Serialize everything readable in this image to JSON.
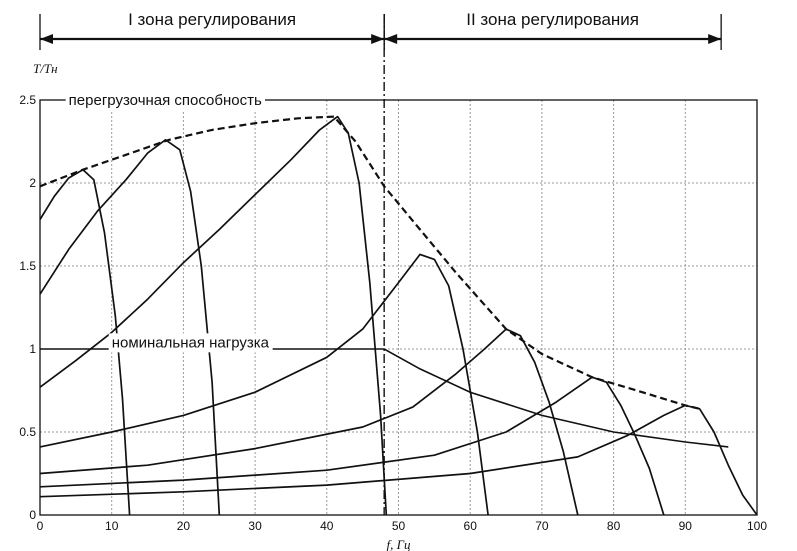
{
  "chart_data": {
    "type": "line",
    "ylabel": "T/Tн",
    "xlabel": "f, Гц",
    "xlim": [
      0,
      100
    ],
    "ylim": [
      0,
      2.5
    ],
    "xticks": [
      0,
      10,
      20,
      30,
      40,
      50,
      60,
      70,
      80,
      90,
      100
    ],
    "xtick_labels": [
      "0",
      "10",
      "20",
      "30",
      "40",
      "50",
      "60",
      "70",
      "80",
      "90",
      "100"
    ],
    "yticks": [
      0,
      0.5,
      1,
      1.5,
      2,
      2.5
    ],
    "ytick_labels": [
      "0",
      "0.5",
      "1",
      "1.5",
      "2",
      "2.5"
    ],
    "grid": true,
    "zone_boundary_x": 48,
    "zones": [
      {
        "label": "I зона регулирования",
        "from": 0,
        "to": 48
      },
      {
        "label": "II зона регулирования",
        "from": 48,
        "to": 95
      }
    ],
    "annotations": [
      {
        "text": "перегрузочная способность",
        "x": 4,
        "y": 2.5
      },
      {
        "text": "номинальная нагрузка",
        "x": 10,
        "y": 1.04
      }
    ],
    "overload_envelope": {
      "style": "dashed",
      "points": [
        [
          0,
          1.98
        ],
        [
          6,
          2.08
        ],
        [
          12,
          2.17
        ],
        [
          18,
          2.26
        ],
        [
          24,
          2.32
        ],
        [
          30,
          2.36
        ],
        [
          36,
          2.39
        ],
        [
          41,
          2.4
        ],
        [
          44,
          2.25
        ],
        [
          48,
          1.98
        ],
        [
          53,
          1.72
        ],
        [
          58,
          1.46
        ],
        [
          65,
          1.12
        ],
        [
          70,
          0.97
        ],
        [
          77,
          0.83
        ],
        [
          84,
          0.74
        ],
        [
          90,
          0.66
        ],
        [
          92,
          0.64
        ]
      ]
    },
    "nominal_load": {
      "points": [
        [
          0,
          1
        ],
        [
          48,
          1
        ],
        [
          53,
          0.88
        ],
        [
          60,
          0.74
        ],
        [
          70,
          0.6
        ],
        [
          80,
          0.5
        ],
        [
          90,
          0.44
        ],
        [
          96,
          0.41
        ]
      ]
    },
    "series": [
      {
        "values": [
          [
            0,
            1.78
          ],
          [
            2,
            1.92
          ],
          [
            4,
            2.03
          ],
          [
            6,
            2.08
          ],
          [
            7.5,
            2.02
          ],
          [
            9,
            1.7
          ],
          [
            10.5,
            1.2
          ],
          [
            11.5,
            0.7
          ],
          [
            12.5,
            0
          ]
        ]
      },
      {
        "values": [
          [
            0,
            1.33
          ],
          [
            4,
            1.6
          ],
          [
            8,
            1.83
          ],
          [
            12,
            2.02
          ],
          [
            15,
            2.18
          ],
          [
            17.5,
            2.26
          ],
          [
            19.5,
            2.2
          ],
          [
            21,
            1.95
          ],
          [
            22.5,
            1.5
          ],
          [
            24,
            0.8
          ],
          [
            25,
            0
          ]
        ]
      },
      {
        "values": [
          [
            0,
            0.77
          ],
          [
            5,
            0.93
          ],
          [
            10,
            1.1
          ],
          [
            15,
            1.3
          ],
          [
            20,
            1.52
          ],
          [
            25,
            1.72
          ],
          [
            30,
            1.93
          ],
          [
            35,
            2.14
          ],
          [
            39,
            2.32
          ],
          [
            41.5,
            2.4
          ],
          [
            43,
            2.3
          ],
          [
            44.5,
            2.0
          ],
          [
            46,
            1.4
          ],
          [
            47.5,
            0.6
          ],
          [
            48.3,
            0
          ]
        ]
      },
      {
        "values": [
          [
            0,
            0.41
          ],
          [
            10,
            0.5
          ],
          [
            20,
            0.6
          ],
          [
            30,
            0.74
          ],
          [
            40,
            0.95
          ],
          [
            45,
            1.12
          ],
          [
            50,
            1.4
          ],
          [
            53,
            1.57
          ],
          [
            55,
            1.54
          ],
          [
            57,
            1.38
          ],
          [
            59,
            1.0
          ],
          [
            61,
            0.5
          ],
          [
            62.5,
            0
          ]
        ]
      },
      {
        "values": [
          [
            0,
            0.25
          ],
          [
            15,
            0.3
          ],
          [
            30,
            0.4
          ],
          [
            45,
            0.53
          ],
          [
            52,
            0.65
          ],
          [
            58,
            0.85
          ],
          [
            62,
            1.0
          ],
          [
            65,
            1.12
          ],
          [
            67,
            1.08
          ],
          [
            69,
            0.92
          ],
          [
            71,
            0.68
          ],
          [
            73,
            0.38
          ],
          [
            75,
            0
          ]
        ]
      },
      {
        "values": [
          [
            0,
            0.17
          ],
          [
            20,
            0.21
          ],
          [
            40,
            0.27
          ],
          [
            55,
            0.36
          ],
          [
            65,
            0.5
          ],
          [
            72,
            0.68
          ],
          [
            77,
            0.83
          ],
          [
            79,
            0.8
          ],
          [
            81,
            0.66
          ],
          [
            83,
            0.48
          ],
          [
            85,
            0.28
          ],
          [
            87,
            0
          ]
        ]
      },
      {
        "values": [
          [
            0,
            0.11
          ],
          [
            20,
            0.14
          ],
          [
            40,
            0.18
          ],
          [
            60,
            0.25
          ],
          [
            75,
            0.35
          ],
          [
            82,
            0.48
          ],
          [
            87,
            0.6
          ],
          [
            90,
            0.66
          ],
          [
            92,
            0.64
          ],
          [
            94,
            0.5
          ],
          [
            96,
            0.3
          ],
          [
            98,
            0.12
          ],
          [
            100,
            0
          ]
        ]
      }
    ]
  }
}
